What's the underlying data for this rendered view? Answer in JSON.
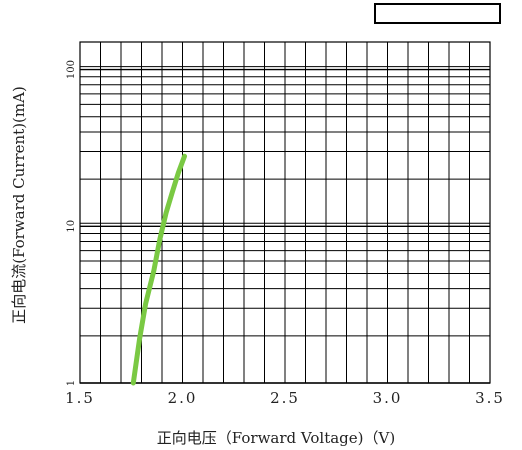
{
  "chart_data": {
    "type": "line",
    "xlabel": "正向电压（Forward  Voltage)（V)",
    "ylabel": "正向电流(Forward  Current)(mA)",
    "x_ticks": [
      "1.5",
      "2.0",
      "2.5",
      "3.0",
      "3.5"
    ],
    "y_ticks": [
      "1",
      "10",
      "100"
    ],
    "xlim": [
      1.5,
      3.5
    ],
    "ylim": [
      1,
      150
    ],
    "y_scale": "log",
    "grid": true,
    "legend": "top-right",
    "series": [
      {
        "color": "#7ac943",
        "x": [
          1.76,
          1.79,
          1.82,
          1.86,
          1.89,
          1.92,
          1.95,
          1.98,
          2.01
        ],
        "y": [
          1,
          1.9,
          3.2,
          5.2,
          8.3,
          12.2,
          16.5,
          22,
          28
        ]
      }
    ]
  },
  "colors": {
    "grid": "#000000",
    "curve": "#7ac943"
  }
}
